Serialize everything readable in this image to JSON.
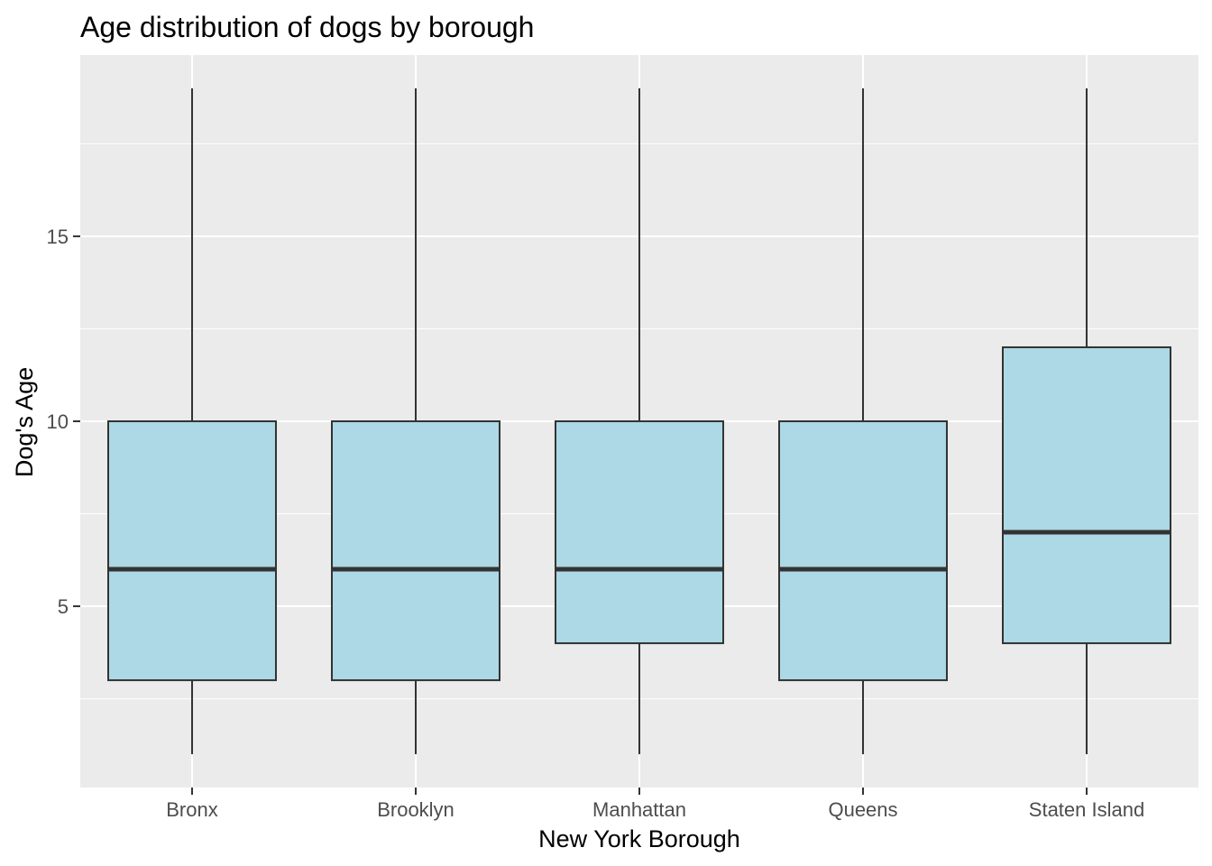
{
  "chart_data": {
    "type": "boxplot",
    "title": "Age distribution of dogs by borough",
    "xlabel": "New York Borough",
    "ylabel": "Dog's Age",
    "categories": [
      "Bronx",
      "Brooklyn",
      "Manhattan",
      "Queens",
      "Staten Island"
    ],
    "boxes": [
      {
        "category": "Bronx",
        "min": 1,
        "q1": 3,
        "median": 6,
        "q3": 10,
        "max": 19
      },
      {
        "category": "Brooklyn",
        "min": 1,
        "q1": 3,
        "median": 6,
        "q3": 10,
        "max": 19
      },
      {
        "category": "Manhattan",
        "min": 1,
        "q1": 4,
        "median": 6,
        "q3": 10,
        "max": 19
      },
      {
        "category": "Queens",
        "min": 1,
        "q1": 3,
        "median": 6,
        "q3": 10,
        "max": 19
      },
      {
        "category": "Staten Island",
        "min": 1,
        "q1": 4,
        "median": 7,
        "q3": 12,
        "max": 19
      }
    ],
    "yticks": [
      5,
      10,
      15
    ],
    "ylim": [
      0.1,
      19.9
    ],
    "grid": true,
    "colors": {
      "panel": "#EBEBEB",
      "grid": "#FFFFFF",
      "box_fill": "#ADD8E6",
      "box_line": "#333333",
      "tick": "#333333",
      "tick_text": "#4D4D4D"
    }
  }
}
